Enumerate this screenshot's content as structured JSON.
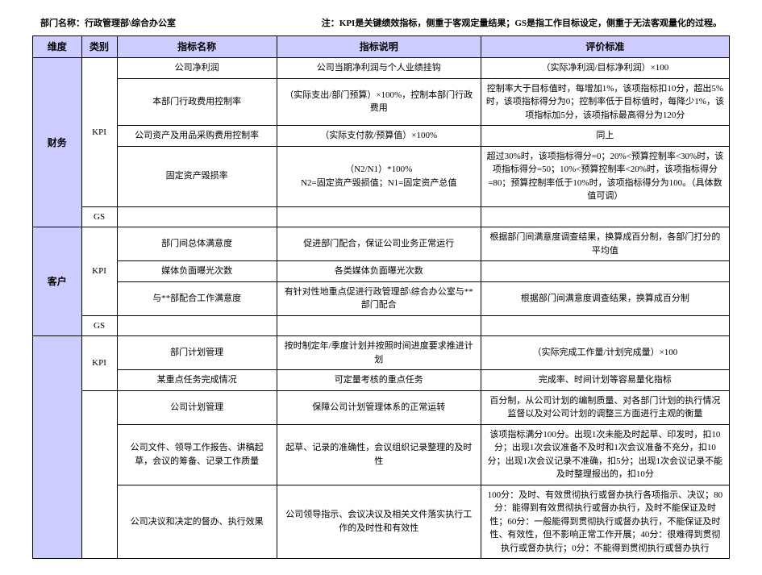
{
  "header": {
    "left_label": "部门名称：",
    "left_value": "行政管理部\\综合办公室",
    "right_note": "注：KPI是关键绩效指标，侧重于客观定量结果；GS是指工作目标设定，侧重于无法客观量化的过程。"
  },
  "columns": {
    "dimension": "维度",
    "category": "类别",
    "indicator_name": "指标名称",
    "indicator_desc": "指标说明",
    "eval_std": "评价标准"
  },
  "dimensions": {
    "finance": "财务",
    "customer": "客户"
  },
  "categories": {
    "kpi": "KPI",
    "gs": "GS"
  },
  "rows": {
    "r1": {
      "name": "公司净利润",
      "desc": "公司当期净利润与个人业绩挂钩",
      "std": "（实际净利润/目标净利润）×100"
    },
    "r2": {
      "name": "本部门行政费用控制率",
      "desc": "（实际支出/部门预算）×100%，控制本部门行政费用",
      "std": "控制率大于目标值时，每增加1%，该项指标扣10分，超出5%时，该项指标得分为0；控制率低于目标值时，每降少1%，该项指标加5分，该项指标最高得分为120分"
    },
    "r3": {
      "name": "公司资产及用品采购费用控制率",
      "desc": "（实际支付款/预算值）×100%",
      "std": "同上"
    },
    "r4": {
      "name": "固定资产毁损率",
      "desc": "（N2/N1）*100%\nN2=固定资产毁损值；N1=固定资产总值",
      "std": "超过30%时，该项指标得分=0；20%<预算控制率<30%时，该项指标得分=50；10%<预算控制率<20%时，该项指标得分=80；预算控制率低于10%时，该项指标得分为100。（具体数值可调）"
    },
    "r6": {
      "name": "部门间总体满意度",
      "desc": "促进部门配合，保证公司业务正常运行",
      "std": "根据部门间满意度调查结果，换算成百分制，各部门打分的平均值"
    },
    "r7": {
      "name": "媒体负面曝光次数",
      "desc": "各类媒体负面曝光次数",
      "std": ""
    },
    "r8": {
      "name": "与**部配合工作满意度",
      "desc": "有针对性地重点促进行政管理部\\综合办公室与**部门配合",
      "std": "根据部门间满意度调查结果，换算成百分制"
    },
    "r10": {
      "name": "部门计划管理",
      "desc": "按时制定年/季度计划并按照时间进度要求推进计划",
      "std": "（实际完成工作量/计划完成量）×100"
    },
    "r11": {
      "name": "某重点任务完成情况",
      "desc": "可定量考核的重点任务",
      "std": "完成率、时间计划等容易量化指标"
    },
    "r12": {
      "name": "公司计划管理",
      "desc": "保障公司计划管理体系的正常运转",
      "std": "百分制，从公司计划的编制质量、对各部门计划的执行情况监督以及对公司计划的调整三方面进行主观的衡量"
    },
    "r13": {
      "name": "公司文件、领导工作报告、讲稿起草，会议的筹备、记录工作质量",
      "desc": "起草、记录的准确性，会议组织记录整理的及时性",
      "std": "该项指标满分100分。出现1次未能及时起草、印发时，扣10分；出现1次会议准备不及时和1次会议准备不充分，扣10分；出现1次会议记录不准确，扣5分；出现1次会议记录不能及时整理报出的，扣10分"
    },
    "r14": {
      "name": "公司决议和决定的督办、执行效果",
      "desc": "公司领导指示、会议决议及相关文件落实执行工作的及时性和有效性",
      "std": "100分：及时、有效贯彻执行或督办执行各项指示、决议；80分：能得到有效贯彻执行或督办执行，及时不能保证及时性；60分：一般能得到贯彻执行或督办执行，不能保证及时性、有效性，但不影响正常工作开展；40分：很难得到贯彻执行或督办执行；0分：不能得到贯彻执行或督办执行"
    }
  },
  "style": {
    "header_bg": "#ccccff",
    "border_color": "#000000",
    "font_family": "SimSun",
    "base_font_size": 11
  }
}
